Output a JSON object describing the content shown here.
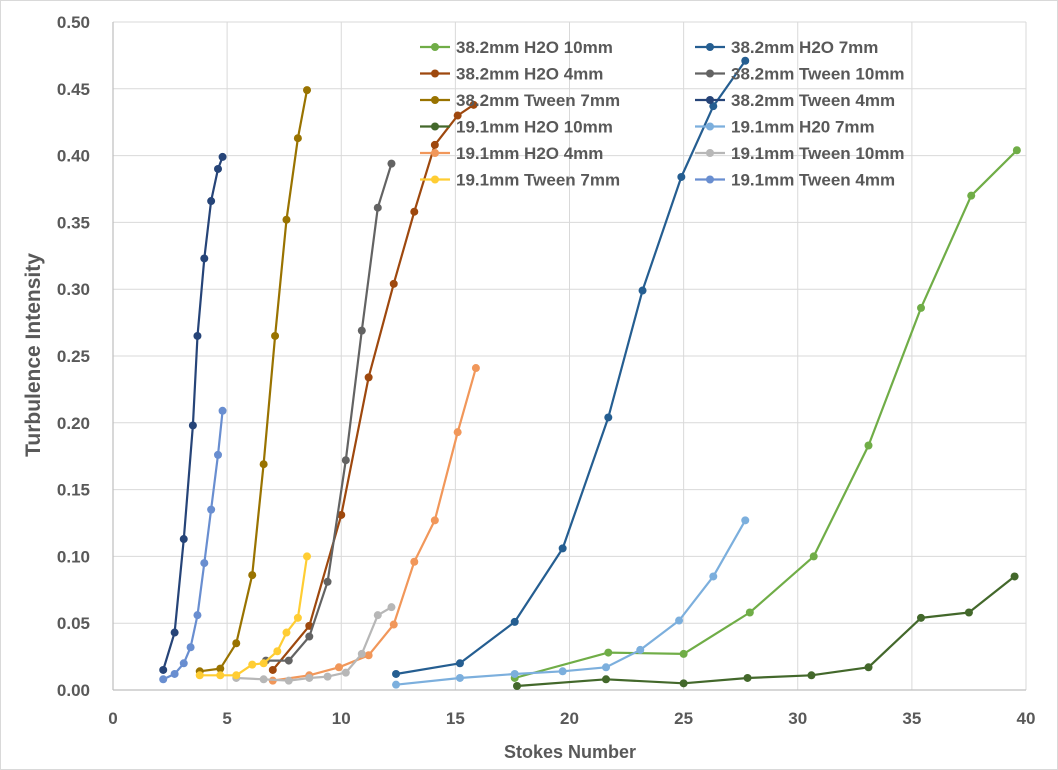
{
  "chart_data": {
    "type": "line",
    "title": "",
    "xlabel": "Stokes Number",
    "ylabel": "Turbulence Intensity",
    "xlim": [
      0,
      40
    ],
    "ylim": [
      0,
      0.5
    ],
    "x_ticks": [
      "0",
      "5",
      "10",
      "15",
      "20",
      "25",
      "30",
      "35",
      "40"
    ],
    "y_ticks": [
      "0.00",
      "0.05",
      "0.10",
      "0.15",
      "0.20",
      "0.25",
      "0.30",
      "0.35",
      "0.40",
      "0.45",
      "0.50"
    ],
    "grid": true,
    "legend_position": "top-right",
    "series": [
      {
        "name": "38.2mm H2O 10mm",
        "color": "#70AD47",
        "x": [
          17.6,
          21.7,
          25.0,
          27.9,
          30.7,
          33.1,
          35.4,
          37.6,
          39.6
        ],
        "y": [
          0.009,
          0.028,
          0.027,
          0.058,
          0.1,
          0.183,
          0.286,
          0.37,
          0.404
        ]
      },
      {
        "name": "38.2mm H2O 7mm",
        "color": "#255E91",
        "x": [
          12.4,
          15.2,
          17.6,
          19.7,
          21.7,
          23.2,
          24.9,
          26.3,
          27.7
        ],
        "y": [
          0.012,
          0.02,
          0.051,
          0.106,
          0.204,
          0.299,
          0.384,
          0.437,
          0.471
        ]
      },
      {
        "name": "38.2mm H2O 4mm",
        "color": "#9E480E",
        "x": [
          7.0,
          8.6,
          10.0,
          11.2,
          12.3,
          13.2,
          14.1,
          15.1,
          15.8
        ],
        "y": [
          0.015,
          0.048,
          0.131,
          0.234,
          0.304,
          0.358,
          0.408,
          0.43,
          0.438
        ]
      },
      {
        "name": "38.2mm Tween 10mm",
        "color": "#636363",
        "x": [
          6.7,
          7.7,
          8.6,
          9.4,
          10.2,
          10.9,
          11.6,
          12.2
        ],
        "y": [
          0.022,
          0.022,
          0.04,
          0.081,
          0.172,
          0.269,
          0.361,
          0.394
        ]
      },
      {
        "name": "38.2mm Tween 7mm",
        "color": "#997300",
        "x": [
          3.8,
          4.7,
          5.4,
          6.1,
          6.6,
          7.1,
          7.6,
          8.1,
          8.5
        ],
        "y": [
          0.014,
          0.016,
          0.035,
          0.086,
          0.169,
          0.265,
          0.352,
          0.413,
          0.449
        ]
      },
      {
        "name": "38.2mm Tween 4mm",
        "color": "#264478",
        "x": [
          2.2,
          2.7,
          3.1,
          3.5,
          3.7,
          4.0,
          4.3,
          4.6,
          4.8
        ],
        "y": [
          0.015,
          0.043,
          0.113,
          0.198,
          0.265,
          0.323,
          0.366,
          0.39,
          0.399
        ]
      },
      {
        "name": "19.1mm H2O 10mm",
        "color": "#43682B",
        "x": [
          17.7,
          21.6,
          25.0,
          27.8,
          30.6,
          33.1,
          35.4,
          37.5,
          39.5
        ],
        "y": [
          0.003,
          0.008,
          0.005,
          0.009,
          0.011,
          0.017,
          0.054,
          0.058,
          0.085
        ]
      },
      {
        "name": "19.1mm H20 7mm",
        "color": "#7CAFDD",
        "x": [
          12.4,
          15.2,
          17.6,
          19.7,
          21.6,
          23.1,
          24.8,
          26.3,
          27.7
        ],
        "y": [
          0.004,
          0.009,
          0.012,
          0.014,
          0.017,
          0.03,
          0.052,
          0.085,
          0.127
        ]
      },
      {
        "name": "19.1mm H2O 4mm",
        "color": "#F1975A",
        "x": [
          7.0,
          8.6,
          9.9,
          11.2,
          12.3,
          13.2,
          14.1,
          15.1,
          15.9
        ],
        "y": [
          0.007,
          0.011,
          0.017,
          0.026,
          0.049,
          0.096,
          0.127,
          0.193,
          0.241
        ]
      },
      {
        "name": "19.1mm Tween 10mm",
        "color": "#B7B7B7",
        "x": [
          5.4,
          6.6,
          7.7,
          8.6,
          9.4,
          10.2,
          10.9,
          11.6,
          12.2
        ],
        "y": [
          0.009,
          0.008,
          0.007,
          0.009,
          0.01,
          0.013,
          0.027,
          0.056,
          0.062
        ]
      },
      {
        "name": "19.1mm Tween 7mm",
        "color": "#FFCD33",
        "x": [
          3.8,
          4.7,
          5.4,
          6.1,
          6.6,
          7.2,
          7.6,
          8.1,
          8.5
        ],
        "y": [
          0.011,
          0.011,
          0.011,
          0.019,
          0.02,
          0.029,
          0.043,
          0.054,
          0.1
        ]
      },
      {
        "name": "19.1mm Tween 4mm",
        "color": "#698ED0",
        "x": [
          2.2,
          2.7,
          3.1,
          3.4,
          3.7,
          4.0,
          4.3,
          4.6,
          4.8
        ],
        "y": [
          0.008,
          0.012,
          0.02,
          0.032,
          0.056,
          0.095,
          0.135,
          0.176,
          0.209
        ]
      }
    ]
  }
}
